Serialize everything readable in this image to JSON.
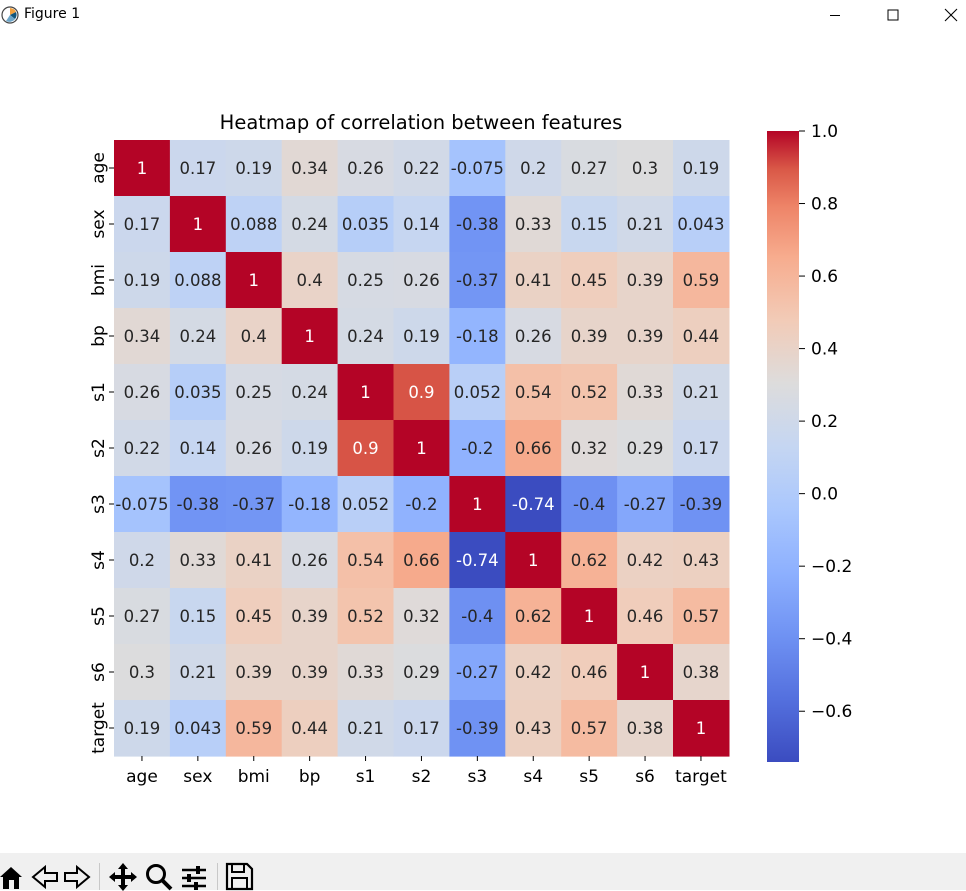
{
  "window": {
    "title": "Figure 1",
    "minimize_icon": "minimize-icon",
    "maximize_icon": "maximize-icon",
    "close_icon": "close-icon"
  },
  "toolbar": {
    "buttons": [
      "home-icon",
      "back-arrow-icon",
      "forward-arrow-icon",
      "pan-icon",
      "zoom-icon",
      "configure-subplots-icon",
      "save-icon"
    ]
  },
  "chart_data": {
    "type": "heatmap",
    "title": "Heatmap of correlation between features",
    "xlabel": "",
    "ylabel": "",
    "labels": [
      "age",
      "sex",
      "bmi",
      "bp",
      "s1",
      "s2",
      "s3",
      "s4",
      "s5",
      "s6",
      "target"
    ],
    "cell_text": [
      [
        "1",
        "0.17",
        "0.19",
        "0.34",
        "0.26",
        "0.22",
        "-0.075",
        "0.2",
        "0.27",
        "0.3",
        "0.19"
      ],
      [
        "0.17",
        "1",
        "0.088",
        "0.24",
        "0.035",
        "0.14",
        "-0.38",
        "0.33",
        "0.15",
        "0.21",
        "0.043"
      ],
      [
        "0.19",
        "0.088",
        "1",
        "0.4",
        "0.25",
        "0.26",
        "-0.37",
        "0.41",
        "0.45",
        "0.39",
        "0.59"
      ],
      [
        "0.34",
        "0.24",
        "0.4",
        "1",
        "0.24",
        "0.19",
        "-0.18",
        "0.26",
        "0.39",
        "0.39",
        "0.44"
      ],
      [
        "0.26",
        "0.035",
        "0.25",
        "0.24",
        "1",
        "0.9",
        "0.052",
        "0.54",
        "0.52",
        "0.33",
        "0.21"
      ],
      [
        "0.22",
        "0.14",
        "0.26",
        "0.19",
        "0.9",
        "1",
        "-0.2",
        "0.66",
        "0.32",
        "0.29",
        "0.17"
      ],
      [
        "-0.075",
        "-0.38",
        "-0.37",
        "-0.18",
        "0.052",
        "-0.2",
        "1",
        "-0.74",
        "-0.4",
        "-0.27",
        "-0.39"
      ],
      [
        "0.2",
        "0.33",
        "0.41",
        "0.26",
        "0.54",
        "0.66",
        "-0.74",
        "1",
        "0.62",
        "0.42",
        "0.43"
      ],
      [
        "0.27",
        "0.15",
        "0.45",
        "0.39",
        "0.52",
        "0.32",
        "-0.4",
        "0.62",
        "1",
        "0.46",
        "0.57"
      ],
      [
        "0.3",
        "0.21",
        "0.39",
        "0.39",
        "0.33",
        "0.29",
        "-0.27",
        "0.42",
        "0.46",
        "1",
        "0.38"
      ],
      [
        "0.19",
        "0.043",
        "0.59",
        "0.44",
        "0.21",
        "0.17",
        "-0.39",
        "0.43",
        "0.57",
        "0.38",
        "1"
      ]
    ],
    "colormap": "coolwarm",
    "vmin": -0.74,
    "vmax": 1.0,
    "annotated": true,
    "colorbar": {
      "ticks": [
        1.0,
        0.8,
        0.6,
        0.4,
        0.2,
        0.0,
        -0.2,
        -0.4,
        -0.6
      ],
      "tick_labels": [
        "1.0",
        "0.8",
        "0.6",
        "0.4",
        "0.2",
        "0.0",
        "−0.2",
        "−0.4",
        "−0.6"
      ],
      "placement": "right"
    },
    "colors": {
      "low": "#3b4cc0",
      "mid": "#dddddd",
      "high": "#b40426"
    }
  }
}
